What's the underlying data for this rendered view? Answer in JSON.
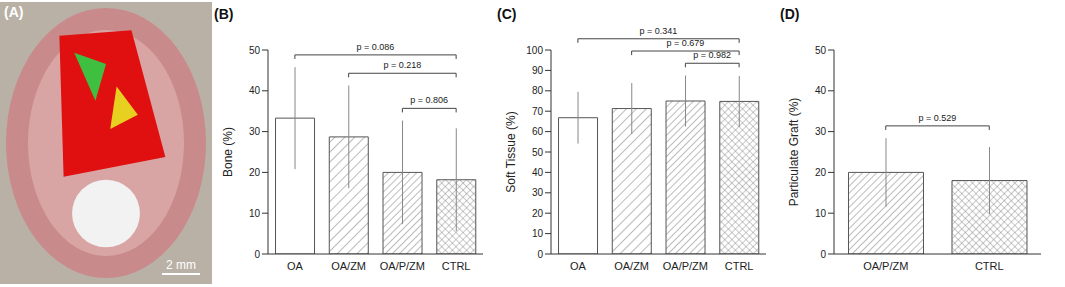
{
  "chart_data": [
    {
      "type": "image",
      "title": "(A)",
      "annotations": [
        {
          "text": "2 mm"
        }
      ]
    },
    {
      "type": "bar",
      "title": "(B)",
      "ylabel": "Bone (%)",
      "categories": [
        "OA",
        "OA/ZM",
        "OA/P/ZM",
        "CTRL"
      ],
      "values": [
        33.3,
        28.7,
        20.0,
        18.2
      ],
      "errors": [
        12.5,
        12.6,
        12.7,
        12.6
      ],
      "ylim": [
        0,
        50
      ],
      "yticks": [
        0,
        10,
        20,
        30,
        40,
        50
      ],
      "annotations": [
        {
          "text": "p = 0.086",
          "from": "OA",
          "to": "CTRL"
        },
        {
          "text": "p = 0.218",
          "from": "OA/ZM",
          "to": "CTRL"
        },
        {
          "text": "p = 0.806",
          "from": "OA/P/ZM",
          "to": "CTRL"
        }
      ]
    },
    {
      "type": "bar",
      "title": "(C)",
      "ylabel": "Soft Tissue (%)",
      "categories": [
        "OA",
        "OA/ZM",
        "OA/P/ZM",
        "CTRL"
      ],
      "values": [
        66.8,
        71.3,
        75.0,
        74.8
      ],
      "errors": [
        12.7,
        12.5,
        12.5,
        12.5
      ],
      "ylim": [
        0,
        100
      ],
      "yticks": [
        0,
        10,
        20,
        30,
        40,
        50,
        60,
        70,
        80,
        90,
        100
      ],
      "annotations": [
        {
          "text": "p = 0.341",
          "from": "OA",
          "to": "CTRL"
        },
        {
          "text": "p = 0.679",
          "from": "OA/ZM",
          "to": "CTRL"
        },
        {
          "text": "p = 0.982",
          "from": "OA/P/ZM",
          "to": "CTRL"
        }
      ]
    },
    {
      "type": "bar",
      "title": "(D)",
      "ylabel": "Particulate Graft (%)",
      "categories": [
        "OA/P/ZM",
        "CTRL"
      ],
      "values": [
        20.0,
        18.0
      ],
      "errors": [
        8.4,
        8.2
      ],
      "ylim": [
        0,
        50
      ],
      "yticks": [
        0,
        10,
        20,
        30,
        40,
        50
      ],
      "annotations": [
        {
          "text": "p = 0.529",
          "from": "OA/P/ZM",
          "to": "CTRL"
        }
      ]
    }
  ]
}
